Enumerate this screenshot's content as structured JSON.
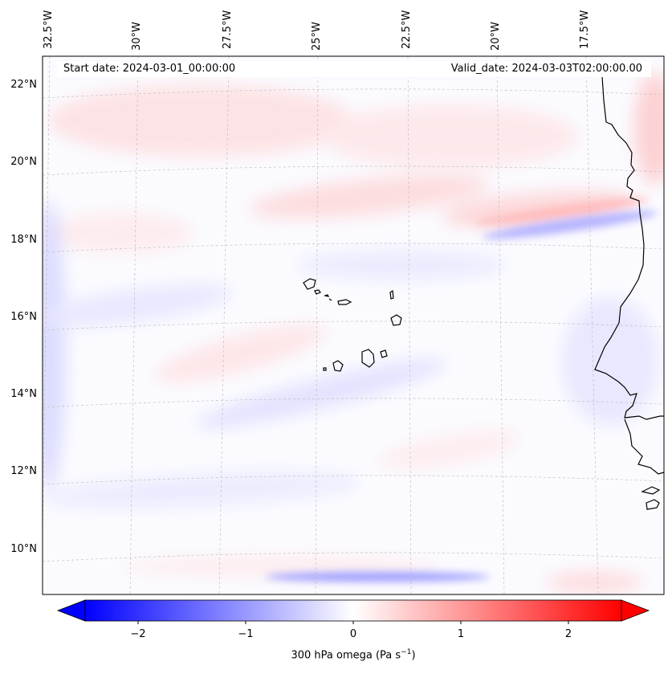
{
  "map": {
    "header": {
      "start_date": "Start date: 2024-03-01_00:00:00",
      "valid_date": "Valid_date: 2024-03-03T02:00:00.00"
    },
    "lon_labels": [
      "32.5°W",
      "30°W",
      "27.5°W",
      "25°W",
      "22.5°W",
      "20°W",
      "17.5°W"
    ],
    "lat_labels": [
      "22°N",
      "20°N",
      "18°N",
      "16°N",
      "14°N",
      "12°N",
      "10°N"
    ],
    "features": [
      "cape-verde-islands",
      "west-africa-coastline"
    ]
  },
  "colorbar": {
    "ticks": [
      "−2",
      "−1",
      "0",
      "1",
      "2"
    ],
    "label_main": "300 hPa omega (Pa s",
    "label_exp": "−1",
    "label_close": ")",
    "range": [
      -2.7,
      2.7
    ],
    "cmap": "bwr",
    "colors": {
      "neg": "#0000ff",
      "zero": "#ffffff",
      "pos": "#ff0000"
    }
  }
}
